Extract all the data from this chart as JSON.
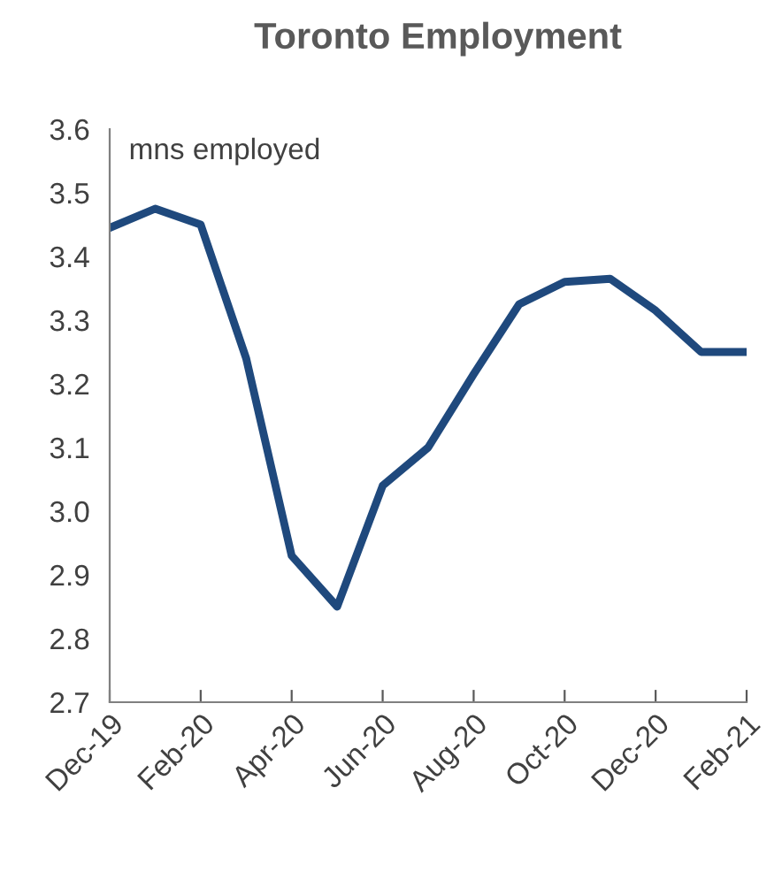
{
  "chart_data": {
    "type": "line",
    "title": "Toronto Employment",
    "ylabel": "mns employed",
    "categories": [
      "Dec-19",
      null,
      "Feb-20",
      null,
      "Apr-20",
      null,
      "Jun-20",
      null,
      "Aug-20",
      null,
      "Oct-20",
      null,
      "Dec-20",
      null,
      "Feb-21"
    ],
    "series": [
      {
        "color": "#1f497d",
        "values": [
          3.445,
          3.475,
          3.45,
          3.24,
          2.93,
          2.85,
          3.04,
          3.1,
          3.215,
          3.325,
          3.36,
          3.365,
          3.315,
          3.25,
          3.25
        ]
      }
    ],
    "ylim": [
      2.7,
      3.6
    ],
    "yticks": [
      2.7,
      2.8,
      2.9,
      {
        "value": 3.0,
        "label": "3.0"
      },
      3.1,
      3.2,
      3.3,
      3.4,
      3.5,
      3.6
    ],
    "grid": false,
    "marker": "none",
    "line_style": "solid"
  }
}
